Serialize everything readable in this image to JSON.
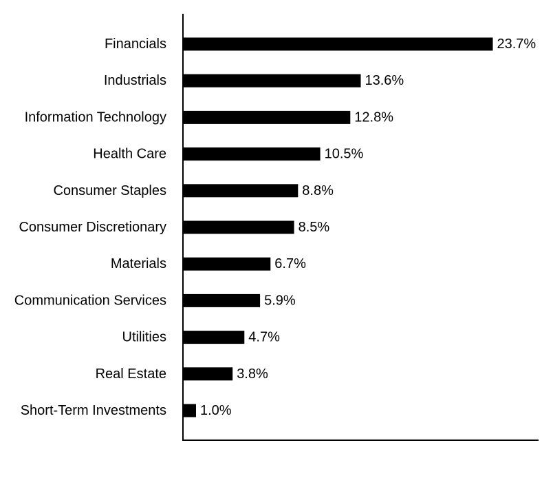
{
  "chart_data": {
    "type": "bar",
    "orientation": "horizontal",
    "categories": [
      "Financials",
      "Industrials",
      "Information Technology",
      "Health Care",
      "Consumer Staples",
      "Consumer Discretionary",
      "Materials",
      "Communication Services",
      "Utilities",
      "Real Estate",
      "Short-Term Investments"
    ],
    "values": [
      23.7,
      13.6,
      12.8,
      10.5,
      8.8,
      8.5,
      6.7,
      5.9,
      4.7,
      3.8,
      1.0
    ],
    "value_labels": [
      "23.7%",
      "13.6%",
      "12.8%",
      "10.5%",
      "8.8%",
      "8.5%",
      "6.7%",
      "5.9%",
      "4.7%",
      "3.8%",
      "1.0%"
    ],
    "title": "",
    "xlabel": "",
    "ylabel": "",
    "xlim": [
      0,
      27.2
    ],
    "grid": false,
    "legend": "none",
    "colors": {
      "bar": "#000000",
      "axis": "#000000",
      "text": "#000000"
    }
  }
}
